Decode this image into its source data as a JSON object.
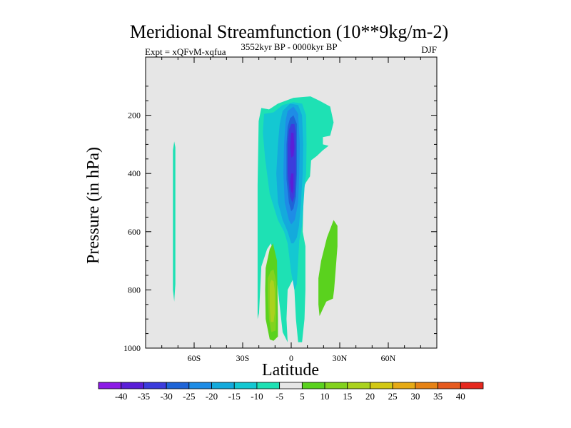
{
  "chart_data": {
    "type": "contour",
    "title": "Meridional Streamfunction (10**9kg/m-2)",
    "subtitle_left": "Expt = xQFvM-xqfua",
    "subtitle_center": "3552kyr BP - 0000kyr BP",
    "subtitle_right": "DJF",
    "xlabel": "Latitude",
    "ylabel": "Pressure (in hPa)",
    "xlim": [
      -90,
      90
    ],
    "ylim": [
      1000,
      0
    ],
    "x_ticks": [
      {
        "value": -60,
        "label": "60S"
      },
      {
        "value": -30,
        "label": "30S"
      },
      {
        "value": 0,
        "label": "0"
      },
      {
        "value": 30,
        "label": "30N"
      },
      {
        "value": 60,
        "label": "60N"
      }
    ],
    "y_ticks": [
      {
        "value": 200,
        "label": "200"
      },
      {
        "value": 400,
        "label": "400"
      },
      {
        "value": 600,
        "label": "600"
      },
      {
        "value": 800,
        "label": "800"
      },
      {
        "value": 1000,
        "label": "1000"
      }
    ],
    "background_color": "#e6e6e6",
    "colorbar": {
      "labels": [
        "-40",
        "-35",
        "-30",
        "-25",
        "-20",
        "-15",
        "-10",
        "-5",
        "5",
        "10",
        "15",
        "20",
        "25",
        "30",
        "35",
        "40"
      ],
      "colors": [
        "#8c1ae6",
        "#5a1ed7",
        "#3c3cdc",
        "#1e64d7",
        "#1e8ce6",
        "#14aadc",
        "#14c8d2",
        "#1ee1b4",
        "#e6e6e6",
        "#5ad21e",
        "#82d21e",
        "#aad21e",
        "#d2c814",
        "#e6aa14",
        "#e68214",
        "#e65a1e",
        "#e6281e"
      ]
    },
    "regions": [
      {
        "name": "weak-negative-70s",
        "level": -5,
        "polygon": [
          [
            -72.3,
            290
          ],
          [
            -71.6,
            310
          ],
          [
            -71.6,
            600
          ],
          [
            -71.6,
            780
          ],
          [
            -72.3,
            840
          ],
          [
            -73.1,
            800
          ],
          [
            -73.1,
            500
          ],
          [
            -73.1,
            320
          ]
        ]
      },
      {
        "name": "main-negative-outer",
        "level": -5,
        "polygon": [
          [
            -18.5,
            175
          ],
          [
            -13.7,
            180
          ],
          [
            -8.2,
            160
          ],
          [
            1.4,
            140
          ],
          [
            11.9,
            135
          ],
          [
            17.5,
            150
          ],
          [
            24.1,
            170
          ],
          [
            26.2,
            225
          ],
          [
            24.1,
            270
          ],
          [
            19.6,
            275
          ],
          [
            19.6,
            300
          ],
          [
            23.1,
            305
          ],
          [
            19.6,
            320
          ],
          [
            15.8,
            340
          ],
          [
            12.3,
            355
          ],
          [
            11.6,
            410
          ],
          [
            9.2,
            430
          ],
          [
            7.4,
            450
          ],
          [
            7.4,
            520
          ],
          [
            7.1,
            600
          ],
          [
            8.8,
            650
          ],
          [
            8.8,
            800
          ],
          [
            8.2,
            900
          ],
          [
            6.7,
            980
          ],
          [
            4.3,
            980
          ],
          [
            2.9,
            900
          ],
          [
            2.0,
            800
          ],
          [
            1.4,
            760
          ],
          [
            -2.2,
            800
          ],
          [
            -2.9,
            900
          ],
          [
            -2.2,
            980
          ],
          [
            -5.3,
            945
          ],
          [
            -9.2,
            750
          ],
          [
            -9.2,
            700
          ],
          [
            -12.6,
            640
          ],
          [
            -14.9,
            660
          ],
          [
            -18.5,
            720
          ],
          [
            -19.9,
            880
          ],
          [
            -20.8,
            900
          ],
          [
            -20.8,
            840
          ],
          [
            -20.8,
            580
          ],
          [
            -20.8,
            440
          ],
          [
            -20.1,
            220
          ]
        ]
      },
      {
        "name": "negative-10",
        "level": -10,
        "polygon": [
          [
            -16.8,
            195
          ],
          [
            -10.9,
            190
          ],
          [
            -5.3,
            165
          ],
          [
            1.4,
            155
          ],
          [
            6.7,
            160
          ],
          [
            9.2,
            200
          ],
          [
            9.5,
            300
          ],
          [
            9.2,
            400
          ],
          [
            8.2,
            450
          ],
          [
            7.4,
            520
          ],
          [
            6.7,
            580
          ],
          [
            5.0,
            630
          ],
          [
            3.5,
            780
          ],
          [
            2.0,
            800
          ],
          [
            0.0,
            740
          ],
          [
            -2.2,
            640
          ],
          [
            -4.4,
            600
          ],
          [
            -8.2,
            560
          ],
          [
            -13.3,
            470
          ],
          [
            -16.1,
            350
          ],
          [
            -17.5,
            260
          ]
        ]
      },
      {
        "name": "negative-15",
        "level": -15,
        "polygon": [
          [
            -5.3,
            185
          ],
          [
            -0.7,
            160
          ],
          [
            4.3,
            165
          ],
          [
            6.7,
            200
          ],
          [
            7.4,
            300
          ],
          [
            7.1,
            400
          ],
          [
            6.0,
            500
          ],
          [
            4.8,
            580
          ],
          [
            3.5,
            620
          ],
          [
            1.4,
            640
          ],
          [
            0.0,
            640
          ],
          [
            -2.2,
            600
          ],
          [
            -5.3,
            560
          ],
          [
            -8.2,
            500
          ],
          [
            -9.2,
            400
          ],
          [
            -8.2,
            300
          ],
          [
            -7.1,
            230
          ]
        ]
      },
      {
        "name": "negative-20",
        "level": -20,
        "polygon": [
          [
            -2.2,
            185
          ],
          [
            1.4,
            170
          ],
          [
            4.3,
            195
          ],
          [
            5.3,
            300
          ],
          [
            5.0,
            400
          ],
          [
            4.3,
            500
          ],
          [
            2.2,
            560
          ],
          [
            0.0,
            575
          ],
          [
            -1.4,
            560
          ],
          [
            -4.0,
            500
          ],
          [
            -4.8,
            400
          ],
          [
            -4.4,
            300
          ],
          [
            -3.5,
            220
          ]
        ]
      },
      {
        "name": "negative-25",
        "level": -25,
        "polygon": [
          [
            -0.7,
            210
          ],
          [
            1.4,
            200
          ],
          [
            3.5,
            230
          ],
          [
            3.5,
            300
          ],
          [
            3.5,
            400
          ],
          [
            2.9,
            480
          ],
          [
            1.4,
            520
          ],
          [
            0.0,
            530
          ],
          [
            -1.4,
            500
          ],
          [
            -2.9,
            420
          ],
          [
            -2.9,
            300
          ],
          [
            -2.2,
            240
          ]
        ]
      },
      {
        "name": "negative-30",
        "level": -30,
        "polygon": [
          [
            0.0,
            230
          ],
          [
            2.0,
            230
          ],
          [
            2.9,
            260
          ],
          [
            2.9,
            400
          ],
          [
            2.0,
            480
          ],
          [
            0.7,
            500
          ],
          [
            -0.7,
            480
          ],
          [
            -2.2,
            400
          ],
          [
            -2.2,
            300
          ],
          [
            -1.4,
            250
          ]
        ]
      },
      {
        "name": "negative-35-upper",
        "level": -35,
        "polygon": [
          [
            0.0,
            260
          ],
          [
            1.4,
            260
          ],
          [
            2.0,
            310
          ],
          [
            1.4,
            340
          ],
          [
            0.0,
            345
          ],
          [
            -0.7,
            310
          ]
        ]
      },
      {
        "name": "negative-35-lower",
        "level": -35,
        "polygon": [
          [
            0.0,
            400
          ],
          [
            1.4,
            400
          ],
          [
            1.4,
            450
          ],
          [
            0.7,
            470
          ],
          [
            0.0,
            460
          ],
          [
            -0.7,
            430
          ]
        ]
      },
      {
        "name": "positive-5-left",
        "level": 5,
        "polygon": [
          [
            -15.8,
            725
          ],
          [
            -13.3,
            660
          ],
          [
            -11.3,
            640
          ],
          [
            -8.8,
            700
          ],
          [
            -8.2,
            900
          ],
          [
            -8.2,
            960
          ],
          [
            -10.9,
            975
          ],
          [
            -13.3,
            970
          ],
          [
            -15.8,
            900
          ],
          [
            -16.1,
            800
          ]
        ]
      },
      {
        "name": "positive-10-left",
        "level": 10,
        "polygon": [
          [
            -14.5,
            760
          ],
          [
            -12.6,
            735
          ],
          [
            -10.9,
            730
          ],
          [
            -9.2,
            775
          ],
          [
            -9.2,
            880
          ],
          [
            -9.6,
            940
          ],
          [
            -12.3,
            945
          ],
          [
            -13.7,
            900
          ],
          [
            -14.5,
            820
          ]
        ]
      },
      {
        "name": "positive-15-left",
        "level": 15,
        "polygon": [
          [
            -13.3,
            780
          ],
          [
            -12.3,
            765
          ],
          [
            -10.9,
            770
          ],
          [
            -10.2,
            800
          ],
          [
            -10.2,
            880
          ],
          [
            -10.9,
            910
          ],
          [
            -12.6,
            910
          ],
          [
            -13.3,
            860
          ]
        ]
      },
      {
        "name": "positive-5-right",
        "level": 5,
        "polygon": [
          [
            18.5,
            700
          ],
          [
            22.1,
            620
          ],
          [
            26.2,
            560
          ],
          [
            28.6,
            580
          ],
          [
            28.6,
            650
          ],
          [
            27.2,
            750
          ],
          [
            26.5,
            800
          ],
          [
            25.8,
            830
          ],
          [
            21.7,
            840
          ],
          [
            19.6,
            865
          ],
          [
            17.5,
            890
          ],
          [
            16.8,
            850
          ],
          [
            16.8,
            760
          ]
        ]
      }
    ]
  }
}
